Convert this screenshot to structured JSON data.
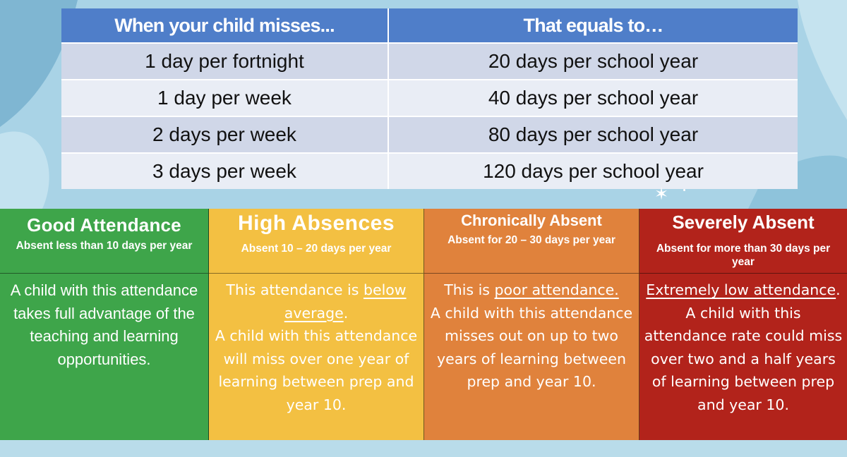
{
  "table": {
    "headers": [
      "When your child misses...",
      "That equals to…"
    ],
    "rows": [
      [
        "1 day per fortnight",
        "20 days per school year"
      ],
      [
        "1 day per week",
        "40 days per school year"
      ],
      [
        "2 days per week",
        "80 days per school year"
      ],
      [
        "3 days per week",
        "120 days per school year"
      ]
    ]
  },
  "categories": [
    {
      "title": "Good Attendance",
      "subtitle": "Absent less than 10 days per year",
      "body_line1": "A child with this attendance takes full advantage of the teaching and learning opportunities.",
      "color": "#3ea54a"
    },
    {
      "title": "High Absences",
      "subtitle": "Absent 10 – 20 days per year",
      "body_lead": "This attendance is ",
      "body_underline": "below average",
      "body_tail": ".",
      "body_line2": "A child with this attendance will miss over one year of learning between prep and year 10.",
      "color": "#f3c042"
    },
    {
      "title": "Chronically Absent",
      "subtitle": "Absent for 20 – 30 days per year",
      "body_lead": "This is ",
      "body_underline": "poor attendance.",
      "body_line2": "A child with this attendance misses out on up to two years of learning between prep and year 10.",
      "color": "#e0823c"
    },
    {
      "title": "Severely Absent",
      "subtitle": "Absent for more than 30 days per year",
      "body_underline": "Extremely low attendance",
      "body_tail": ".",
      "body_line2": "A child with this attendance rate could miss over two and a half years of learning between prep and year 10.",
      "color": "#b2231b"
    }
  ],
  "decor": {
    "background_color": "#a9d3e6",
    "sparkle_icon": "sparkle-icon"
  }
}
